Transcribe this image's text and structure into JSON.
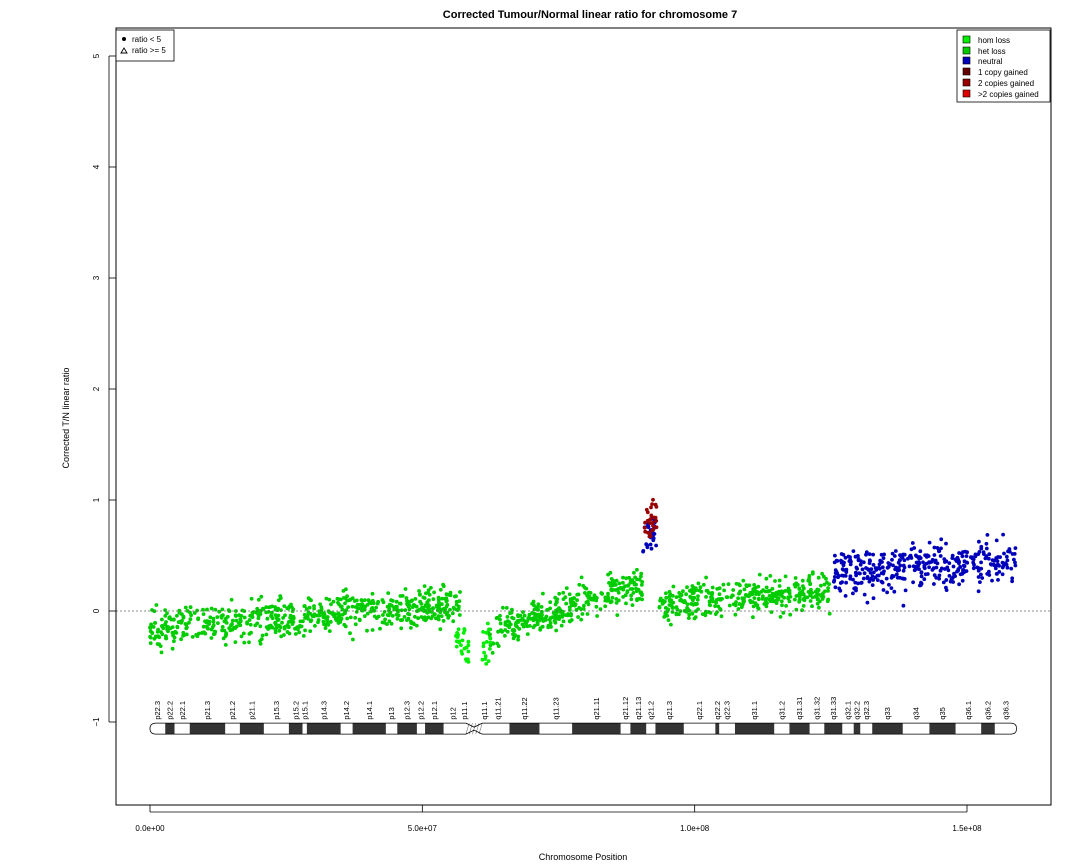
{
  "chart_data": {
    "type": "scatter",
    "title": "Corrected Tumour/Normal linear ratio for chromosome  7",
    "xlabel": "Chromosome Position",
    "ylabel": "Corrected T/N linear ratio",
    "xlim": [
      -5000000,
      166000000
    ],
    "ylim": [
      -1.75,
      5.3
    ],
    "x_ticks": [
      0,
      50000000,
      100000000,
      150000000
    ],
    "x_tick_labels": [
      "0.0e+00",
      "5.0e+07",
      "1.0e+08",
      "1.5e+08"
    ],
    "y_ticks": [
      -1,
      0,
      1,
      2,
      3,
      4,
      5
    ],
    "y_tick_labels": [
      "−1",
      "0",
      "1",
      "2",
      "3",
      "4",
      "5"
    ],
    "reference_line": 0,
    "shape_legend": [
      {
        "label": "ratio < 5",
        "symbol": "dot"
      },
      {
        "label": "ratio >= 5",
        "symbol": "triangle"
      }
    ],
    "color_legend": [
      {
        "label": "hom loss",
        "color": "#00ee00"
      },
      {
        "label": "het loss",
        "color": "#00cc00"
      },
      {
        "label": "neutral",
        "color": "#0000bb"
      },
      {
        "label": "1 copy gained",
        "color": "#660000"
      },
      {
        "label": "2 copies gained",
        "color": "#990000"
      },
      {
        "label": ">2 copies gained",
        "color": "#dd0000"
      }
    ],
    "series": [
      {
        "name": "het loss",
        "color": "#00cc00",
        "segments": [
          {
            "x_start": 0,
            "x_end": 57000000,
            "y_start": -0.15,
            "y_end": 0.05,
            "spread": 0.14
          },
          {
            "x_start": 62000000,
            "x_end": 90500000,
            "y_start": -0.2,
            "y_end": 0.25,
            "spread": 0.14
          },
          {
            "x_start": 93500000,
            "x_end": 125000000,
            "y_start": 0.05,
            "y_end": 0.2,
            "spread": 0.14
          }
        ]
      },
      {
        "name": "hom loss",
        "color": "#00ee00",
        "segments": [
          {
            "x_start": 56000000,
            "x_end": 58500000,
            "y_start": -0.2,
            "y_end": -0.35,
            "spread": 0.12
          },
          {
            "x_start": 61000000,
            "x_end": 62500000,
            "y_start": -0.4,
            "y_end": -0.2,
            "spread": 0.15
          }
        ]
      },
      {
        "name": "neutral",
        "color": "#0000bb",
        "segments": [
          {
            "x_start": 90500000,
            "x_end": 93000000,
            "y_start": 0.55,
            "y_end": 0.8,
            "spread": 0.18
          },
          {
            "x_start": 125500000,
            "x_end": 159000000,
            "y_start": 0.35,
            "y_end": 0.45,
            "spread": 0.18
          }
        ]
      },
      {
        "name": "2 copies gained",
        "color": "#990000",
        "segments": [
          {
            "x_start": 90800000,
            "x_end": 93200000,
            "y_start": 0.75,
            "y_end": 0.95,
            "spread": 0.18
          }
        ]
      }
    ],
    "cytobands": {
      "y": -1.06,
      "centromere": [
        58000000,
        61000000
      ],
      "bands": [
        {
          "name": "p22.3",
          "start": 0,
          "end": 2800000,
          "stain": "gneg"
        },
        {
          "name": "p22.2",
          "start": 2800000,
          "end": 4500000,
          "stain": "gpos"
        },
        {
          "name": "p22.1",
          "start": 4500000,
          "end": 7300000,
          "stain": "gneg"
        },
        {
          "name": "p21.3",
          "start": 7300000,
          "end": 13800000,
          "stain": "gpos"
        },
        {
          "name": "p21.2",
          "start": 13800000,
          "end": 16500000,
          "stain": "gneg"
        },
        {
          "name": "p21.1",
          "start": 16500000,
          "end": 20900000,
          "stain": "gpos"
        },
        {
          "name": "p15.3",
          "start": 20900000,
          "end": 25500000,
          "stain": "gneg"
        },
        {
          "name": "p15.2",
          "start": 25500000,
          "end": 28000000,
          "stain": "gpos"
        },
        {
          "name": "p15.1",
          "start": 28000000,
          "end": 28800000,
          "stain": "gneg"
        },
        {
          "name": "p14.3",
          "start": 28800000,
          "end": 35000000,
          "stain": "gpos"
        },
        {
          "name": "p14.2",
          "start": 35000000,
          "end": 37200000,
          "stain": "gneg"
        },
        {
          "name": "p14.1",
          "start": 37200000,
          "end": 43300000,
          "stain": "gpos"
        },
        {
          "name": "p13",
          "start": 43300000,
          "end": 45400000,
          "stain": "gneg"
        },
        {
          "name": "p12.3",
          "start": 45400000,
          "end": 49000000,
          "stain": "gpos"
        },
        {
          "name": "p12.2",
          "start": 49000000,
          "end": 50500000,
          "stain": "gneg"
        },
        {
          "name": "p12.1",
          "start": 50500000,
          "end": 53900000,
          "stain": "gpos"
        },
        {
          "name": "p12",
          "start": 53900000,
          "end": 57400000,
          "stain": "gneg"
        },
        {
          "name": "p11.1",
          "start": 57400000,
          "end": 58000000,
          "stain": "gneg"
        },
        {
          "name": "q11.1",
          "start": 61000000,
          "end": 61700000,
          "stain": "gneg"
        },
        {
          "name": "q11.21",
          "start": 61700000,
          "end": 66000000,
          "stain": "gneg"
        },
        {
          "name": "q11.22",
          "start": 66000000,
          "end": 71500000,
          "stain": "gpos"
        },
        {
          "name": "q11.23",
          "start": 71500000,
          "end": 77500000,
          "stain": "gneg"
        },
        {
          "name": "q21.11",
          "start": 77500000,
          "end": 86400000,
          "stain": "gpos"
        },
        {
          "name": "q21.12",
          "start": 86400000,
          "end": 88200000,
          "stain": "gneg"
        },
        {
          "name": "q21.13",
          "start": 88200000,
          "end": 91100000,
          "stain": "gpos"
        },
        {
          "name": "q21.2",
          "start": 91100000,
          "end": 92800000,
          "stain": "gneg"
        },
        {
          "name": "q21.3",
          "start": 92800000,
          "end": 98000000,
          "stain": "gpos"
        },
        {
          "name": "q22.1",
          "start": 98000000,
          "end": 103800000,
          "stain": "gneg"
        },
        {
          "name": "q22.2",
          "start": 103800000,
          "end": 104500000,
          "stain": "gpos"
        },
        {
          "name": "q22.3",
          "start": 104500000,
          "end": 107400000,
          "stain": "gneg"
        },
        {
          "name": "q31.1",
          "start": 107400000,
          "end": 114600000,
          "stain": "gpos"
        },
        {
          "name": "q31.2",
          "start": 114600000,
          "end": 117400000,
          "stain": "gneg"
        },
        {
          "name": "q31.31",
          "start": 117400000,
          "end": 121100000,
          "stain": "gpos"
        },
        {
          "name": "q31.32",
          "start": 121100000,
          "end": 123800000,
          "stain": "gneg"
        },
        {
          "name": "q31.33",
          "start": 123800000,
          "end": 127100000,
          "stain": "gpos"
        },
        {
          "name": "q32.1",
          "start": 127100000,
          "end": 129200000,
          "stain": "gneg"
        },
        {
          "name": "q32.2",
          "start": 129200000,
          "end": 130400000,
          "stain": "gpos"
        },
        {
          "name": "q32.3",
          "start": 130400000,
          "end": 132600000,
          "stain": "gneg"
        },
        {
          "name": "q33",
          "start": 132600000,
          "end": 138200000,
          "stain": "gpos"
        },
        {
          "name": "q34",
          "start": 138200000,
          "end": 143100000,
          "stain": "gneg"
        },
        {
          "name": "q35",
          "start": 143100000,
          "end": 147900000,
          "stain": "gpos"
        },
        {
          "name": "q36.1",
          "start": 147900000,
          "end": 152600000,
          "stain": "gneg"
        },
        {
          "name": "q36.2",
          "start": 152600000,
          "end": 155100000,
          "stain": "gpos"
        },
        {
          "name": "q36.3",
          "start": 155100000,
          "end": 159100000,
          "stain": "gneg"
        }
      ]
    }
  }
}
